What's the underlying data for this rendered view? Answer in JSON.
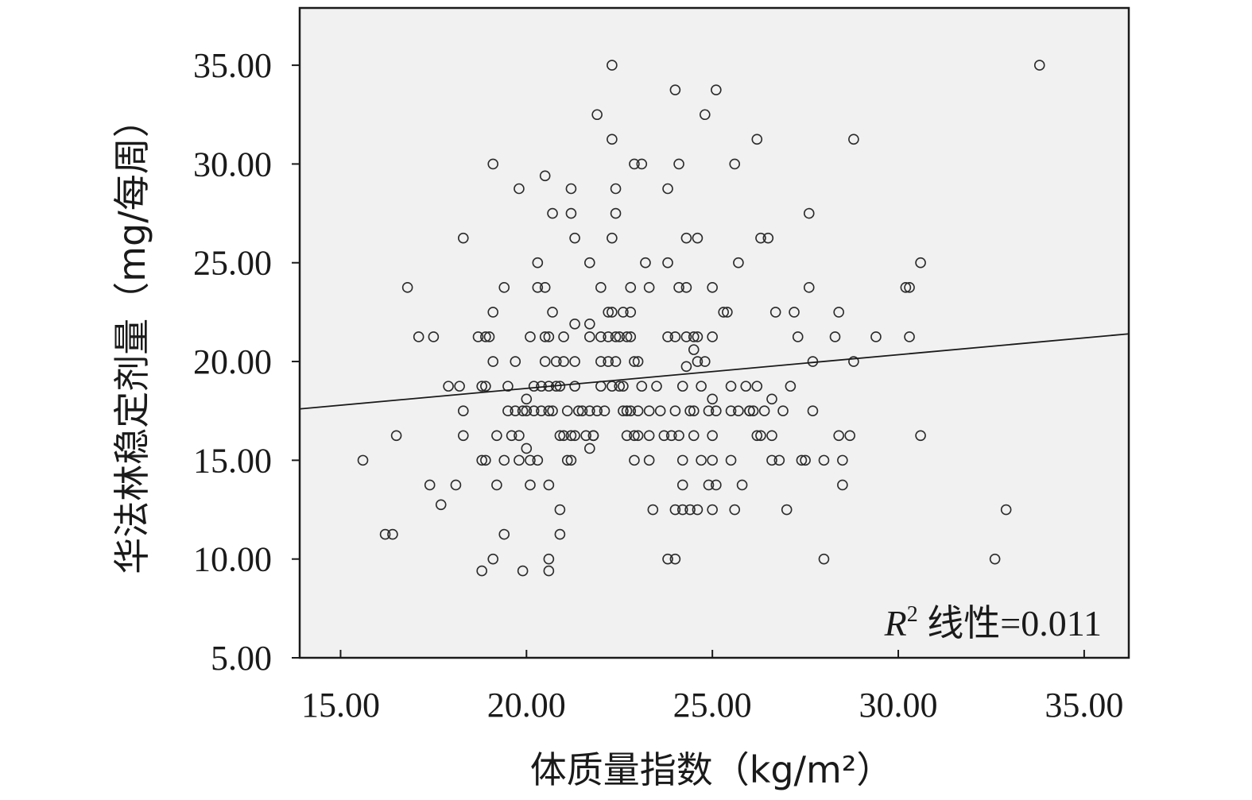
{
  "chart_data": {
    "type": "scatter",
    "xlabel": "体质量指数（kg/m²）",
    "ylabel": "华法林稳定剂量（mg/每周）",
    "xlim": [
      13.9,
      36.2
    ],
    "ylim": [
      5.0,
      37.9
    ],
    "xticks": [
      "15.00",
      "20.00",
      "25.00",
      "30.00",
      "35.00"
    ],
    "xtick_values": [
      15,
      20,
      25,
      30,
      35
    ],
    "yticks": [
      "5.00",
      "10.00",
      "15.00",
      "20.00",
      "25.00",
      "30.00",
      "35.00"
    ],
    "ytick_values": [
      5,
      10,
      15,
      20,
      25,
      30,
      35
    ],
    "grid": false,
    "plot_background": "#f1f1f1",
    "point_color": "#2b2b2b",
    "fit_line": {
      "x": [
        13.9,
        36.2
      ],
      "y": [
        17.6,
        21.4
      ]
    },
    "annotation": {
      "r_label": "R",
      "r_sup": "2",
      "text": " 线性=0.011"
    },
    "points": [
      [
        15.6,
        15.0
      ],
      [
        16.2,
        11.25
      ],
      [
        16.4,
        11.25
      ],
      [
        16.5,
        16.25
      ],
      [
        16.8,
        23.75
      ],
      [
        17.1,
        21.25
      ],
      [
        17.4,
        13.75
      ],
      [
        17.5,
        21.25
      ],
      [
        17.7,
        12.75
      ],
      [
        17.9,
        18.75
      ],
      [
        18.1,
        13.75
      ],
      [
        18.2,
        18.75
      ],
      [
        18.3,
        26.25
      ],
      [
        18.3,
        17.5
      ],
      [
        18.3,
        16.25
      ],
      [
        18.7,
        21.25
      ],
      [
        18.8,
        15.0
      ],
      [
        18.8,
        9.4
      ],
      [
        18.8,
        18.75
      ],
      [
        18.9,
        21.25
      ],
      [
        18.9,
        15.0
      ],
      [
        18.9,
        18.75
      ],
      [
        19.0,
        21.25
      ],
      [
        19.1,
        30.0
      ],
      [
        19.1,
        22.5
      ],
      [
        19.1,
        20.0
      ],
      [
        19.1,
        10.0
      ],
      [
        19.2,
        13.75
      ],
      [
        19.2,
        16.25
      ],
      [
        19.4,
        23.75
      ],
      [
        19.4,
        15.0
      ],
      [
        19.4,
        11.25
      ],
      [
        19.5,
        18.75
      ],
      [
        19.5,
        17.5
      ],
      [
        19.6,
        16.25
      ],
      [
        19.7,
        17.5
      ],
      [
        19.7,
        20.0
      ],
      [
        19.8,
        28.75
      ],
      [
        19.8,
        16.25
      ],
      [
        19.8,
        15.0
      ],
      [
        19.9,
        17.5
      ],
      [
        19.9,
        9.4
      ],
      [
        20.0,
        15.6
      ],
      [
        20.0,
        18.1
      ],
      [
        20.0,
        17.5
      ],
      [
        20.1,
        13.75
      ],
      [
        20.1,
        21.25
      ],
      [
        20.1,
        15.0
      ],
      [
        20.2,
        17.5
      ],
      [
        20.2,
        18.75
      ],
      [
        20.3,
        25.0
      ],
      [
        20.3,
        15.0
      ],
      [
        20.3,
        23.75
      ],
      [
        20.4,
        17.5
      ],
      [
        20.4,
        18.75
      ],
      [
        20.5,
        29.4
      ],
      [
        20.5,
        20.0
      ],
      [
        20.5,
        21.25
      ],
      [
        20.5,
        23.75
      ],
      [
        20.6,
        17.5
      ],
      [
        20.6,
        21.25
      ],
      [
        20.6,
        18.75
      ],
      [
        20.6,
        13.75
      ],
      [
        20.6,
        9.4
      ],
      [
        20.6,
        10.0
      ],
      [
        20.7,
        27.5
      ],
      [
        20.7,
        22.5
      ],
      [
        20.7,
        17.5
      ],
      [
        20.8,
        20.0
      ],
      [
        20.8,
        18.75
      ],
      [
        20.9,
        16.25
      ],
      [
        20.9,
        12.5
      ],
      [
        20.9,
        11.25
      ],
      [
        20.9,
        18.75
      ],
      [
        21.0,
        21.25
      ],
      [
        21.0,
        16.25
      ],
      [
        21.0,
        20.0
      ],
      [
        21.1,
        15.0
      ],
      [
        21.1,
        17.5
      ],
      [
        21.2,
        28.75
      ],
      [
        21.2,
        27.5
      ],
      [
        21.2,
        16.25
      ],
      [
        21.2,
        15.0
      ],
      [
        21.3,
        26.25
      ],
      [
        21.3,
        21.9
      ],
      [
        21.3,
        20.0
      ],
      [
        21.3,
        16.25
      ],
      [
        21.3,
        18.75
      ],
      [
        21.4,
        17.5
      ],
      [
        21.5,
        17.5
      ],
      [
        21.6,
        16.25
      ],
      [
        21.7,
        25.0
      ],
      [
        21.7,
        21.9
      ],
      [
        21.7,
        21.25
      ],
      [
        21.7,
        17.5
      ],
      [
        21.7,
        15.6
      ],
      [
        21.8,
        16.25
      ],
      [
        21.8,
        16.25
      ],
      [
        21.9,
        32.5
      ],
      [
        21.9,
        17.5
      ],
      [
        22.0,
        23.75
      ],
      [
        22.0,
        21.25
      ],
      [
        22.0,
        20.0
      ],
      [
        22.0,
        18.75
      ],
      [
        22.1,
        17.5
      ],
      [
        22.2,
        21.25
      ],
      [
        22.2,
        20.0
      ],
      [
        22.2,
        22.5
      ],
      [
        22.3,
        35.0
      ],
      [
        22.3,
        31.25
      ],
      [
        22.3,
        26.25
      ],
      [
        22.3,
        22.5
      ],
      [
        22.3,
        18.75
      ],
      [
        22.4,
        27.5
      ],
      [
        22.4,
        28.75
      ],
      [
        22.4,
        21.25
      ],
      [
        22.4,
        20.0
      ],
      [
        22.5,
        21.25
      ],
      [
        22.5,
        18.75
      ],
      [
        22.6,
        22.5
      ],
      [
        22.6,
        17.5
      ],
      [
        22.6,
        18.75
      ],
      [
        22.7,
        21.25
      ],
      [
        22.7,
        17.5
      ],
      [
        22.7,
        16.25
      ],
      [
        22.8,
        23.75
      ],
      [
        22.8,
        22.5
      ],
      [
        22.8,
        21.25
      ],
      [
        22.8,
        17.5
      ],
      [
        22.9,
        30.0
      ],
      [
        22.9,
        20.0
      ],
      [
        22.9,
        16.25
      ],
      [
        22.9,
        15.0
      ],
      [
        23.0,
        20.0
      ],
      [
        23.0,
        17.5
      ],
      [
        23.0,
        16.25
      ],
      [
        23.1,
        18.75
      ],
      [
        23.1,
        30.0
      ],
      [
        23.2,
        25.0
      ],
      [
        23.3,
        23.75
      ],
      [
        23.3,
        17.5
      ],
      [
        23.3,
        16.25
      ],
      [
        23.3,
        15.0
      ],
      [
        23.4,
        12.5
      ],
      [
        23.5,
        18.75
      ],
      [
        23.6,
        17.5
      ],
      [
        23.7,
        16.25
      ],
      [
        23.8,
        28.75
      ],
      [
        23.8,
        21.25
      ],
      [
        23.8,
        25.0
      ],
      [
        23.8,
        10.0
      ],
      [
        23.9,
        16.25
      ],
      [
        24.0,
        33.75
      ],
      [
        24.0,
        21.25
      ],
      [
        24.0,
        17.5
      ],
      [
        24.0,
        12.5
      ],
      [
        24.0,
        10.0
      ],
      [
        24.1,
        23.75
      ],
      [
        24.1,
        30.0
      ],
      [
        24.1,
        16.25
      ],
      [
        24.2,
        15.0
      ],
      [
        24.2,
        13.75
      ],
      [
        24.2,
        12.5
      ],
      [
        24.2,
        18.75
      ],
      [
        24.3,
        26.25
      ],
      [
        24.3,
        23.75
      ],
      [
        24.3,
        21.25
      ],
      [
        24.3,
        19.75
      ],
      [
        24.4,
        17.5
      ],
      [
        24.4,
        12.5
      ],
      [
        24.5,
        21.25
      ],
      [
        24.5,
        20.6
      ],
      [
        24.5,
        17.5
      ],
      [
        24.5,
        16.25
      ],
      [
        24.6,
        26.25
      ],
      [
        24.6,
        21.25
      ],
      [
        24.6,
        20.0
      ],
      [
        24.6,
        12.5
      ],
      [
        24.7,
        18.75
      ],
      [
        24.7,
        15.0
      ],
      [
        24.8,
        32.5
      ],
      [
        24.8,
        20.0
      ],
      [
        24.9,
        13.75
      ],
      [
        24.9,
        17.5
      ],
      [
        25.0,
        23.75
      ],
      [
        25.0,
        21.25
      ],
      [
        25.0,
        18.1
      ],
      [
        25.0,
        16.25
      ],
      [
        25.0,
        15.0
      ],
      [
        25.0,
        12.5
      ],
      [
        25.1,
        33.75
      ],
      [
        25.1,
        17.5
      ],
      [
        25.1,
        13.75
      ],
      [
        25.3,
        22.5
      ],
      [
        25.4,
        22.5
      ],
      [
        25.5,
        18.75
      ],
      [
        25.5,
        17.5
      ],
      [
        25.5,
        15.0
      ],
      [
        25.6,
        12.5
      ],
      [
        25.6,
        30.0
      ],
      [
        25.7,
        25.0
      ],
      [
        25.7,
        17.5
      ],
      [
        25.8,
        13.75
      ],
      [
        25.9,
        18.75
      ],
      [
        26.0,
        17.5
      ],
      [
        26.0,
        17.5
      ],
      [
        26.1,
        17.5
      ],
      [
        26.2,
        31.25
      ],
      [
        26.2,
        18.75
      ],
      [
        26.2,
        16.25
      ],
      [
        26.3,
        26.25
      ],
      [
        26.3,
        16.25
      ],
      [
        26.4,
        17.5
      ],
      [
        26.5,
        26.25
      ],
      [
        26.6,
        18.1
      ],
      [
        26.6,
        16.25
      ],
      [
        26.6,
        15.0
      ],
      [
        26.7,
        22.5
      ],
      [
        26.8,
        15.0
      ],
      [
        26.9,
        17.5
      ],
      [
        27.0,
        12.5
      ],
      [
        27.1,
        18.75
      ],
      [
        27.2,
        22.5
      ],
      [
        27.3,
        21.25
      ],
      [
        27.4,
        15.0
      ],
      [
        27.5,
        15.0
      ],
      [
        27.6,
        27.5
      ],
      [
        27.6,
        23.75
      ],
      [
        27.7,
        20.0
      ],
      [
        27.7,
        17.5
      ],
      [
        28.0,
        10.0
      ],
      [
        28.0,
        15.0
      ],
      [
        28.3,
        21.25
      ],
      [
        28.4,
        22.5
      ],
      [
        28.4,
        16.25
      ],
      [
        28.5,
        15.0
      ],
      [
        28.5,
        13.75
      ],
      [
        28.7,
        16.25
      ],
      [
        28.8,
        31.25
      ],
      [
        28.8,
        20.0
      ],
      [
        29.4,
        21.25
      ],
      [
        30.2,
        23.75
      ],
      [
        30.3,
        23.75
      ],
      [
        30.3,
        21.25
      ],
      [
        30.6,
        25.0
      ],
      [
        30.6,
        16.25
      ],
      [
        32.6,
        10.0
      ],
      [
        32.9,
        12.5
      ],
      [
        33.8,
        35.0
      ]
    ]
  }
}
